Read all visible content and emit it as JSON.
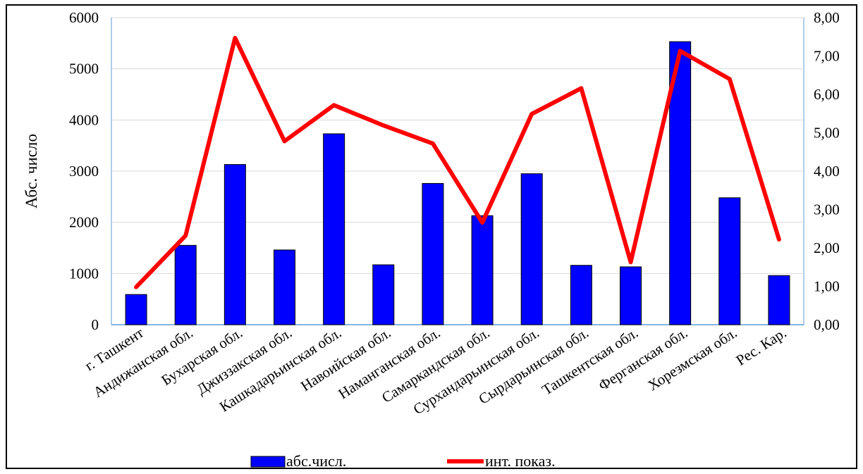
{
  "chart_data": {
    "type": "bar",
    "categories": [
      "г. Ташкент",
      "Андижанская обл.",
      "Бухарская обл.",
      "Джиззакская обл.",
      "Кашкадарьинская обл.",
      "Навоийская обл.",
      "Наманганская обл.",
      "Самаркандская обл.",
      "Сурхандарьинская обл.",
      "Сырдарьинская обл.",
      "Ташкентская обл.",
      "Ферганская обл.",
      "Хорезмская обл.",
      "Рес. Кар."
    ],
    "series": [
      {
        "name": "абс.числ.",
        "type": "bar",
        "axis": "left",
        "color": "#0000ff",
        "values": [
          590,
          1550,
          3130,
          1460,
          3730,
          1170,
          2760,
          2130,
          2950,
          1160,
          1130,
          5530,
          2480,
          960
        ]
      },
      {
        "name": "инт. показ.",
        "type": "line",
        "axis": "right",
        "color": "#ff0000",
        "values": [
          0.98,
          2.32,
          7.47,
          4.78,
          5.72,
          5.19,
          4.72,
          2.66,
          5.49,
          6.16,
          1.63,
          7.13,
          6.4,
          2.22
        ]
      }
    ],
    "ylabel": "Абс. число",
    "ylim": [
      0,
      6000
    ],
    "yticks": [
      "0",
      "1000",
      "2000",
      "3000",
      "4000",
      "5000",
      "6000"
    ],
    "y2lim": [
      0,
      8
    ],
    "y2ticks": [
      "0,00",
      "1,00",
      "2,00",
      "3,00",
      "4,00",
      "5,00",
      "6,00",
      "7,00",
      "8,00"
    ],
    "grid": true,
    "legend_position": "bottom"
  }
}
